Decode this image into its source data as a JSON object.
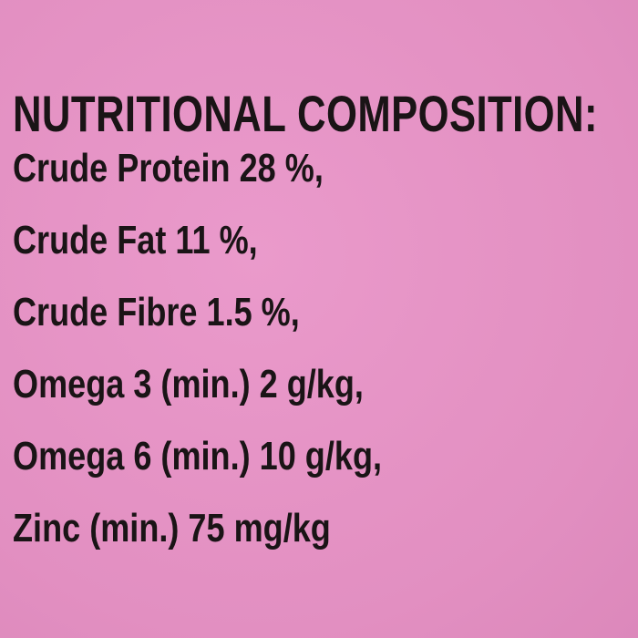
{
  "title": "NUTRITIONAL COMPOSITION:",
  "lines": [
    "Crude Protein 28 %,",
    "Crude Fat 11 %,",
    "Crude Fibre 1.5 %,",
    "Omega 3 (min.) 2 g/kg,",
    "Omega 6 (min.) 10 g/kg,",
    "Zinc (min.) 75 mg/kg"
  ]
}
